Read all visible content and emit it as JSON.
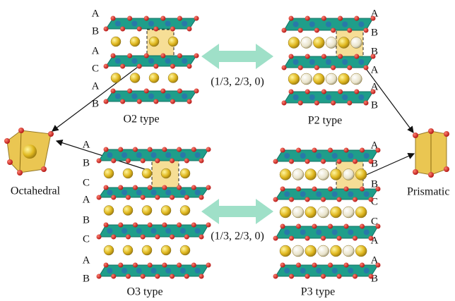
{
  "structures": [
    {
      "name": "O2 type",
      "stacking": [
        "A",
        "B",
        "A",
        "C",
        "A",
        "B"
      ]
    },
    {
      "name": "P2 type",
      "stacking": [
        "A",
        "B",
        "B",
        "A",
        "A",
        "B"
      ]
    },
    {
      "name": "O3 type",
      "stacking": [
        "A",
        "B",
        "C",
        "A",
        "B",
        "C",
        "A",
        "B"
      ]
    },
    {
      "name": "P3 type",
      "stacking": [
        "A",
        "B",
        "B",
        "C",
        "C",
        "A",
        "A",
        "B"
      ]
    }
  ],
  "polyhedra": [
    {
      "label": "Octahedral"
    },
    {
      "label": "Prismatic"
    }
  ],
  "transitions": [
    {
      "label": "(1/3, 2/3, 0)"
    },
    {
      "label": "(1/3, 2/3, 0)"
    }
  ]
}
